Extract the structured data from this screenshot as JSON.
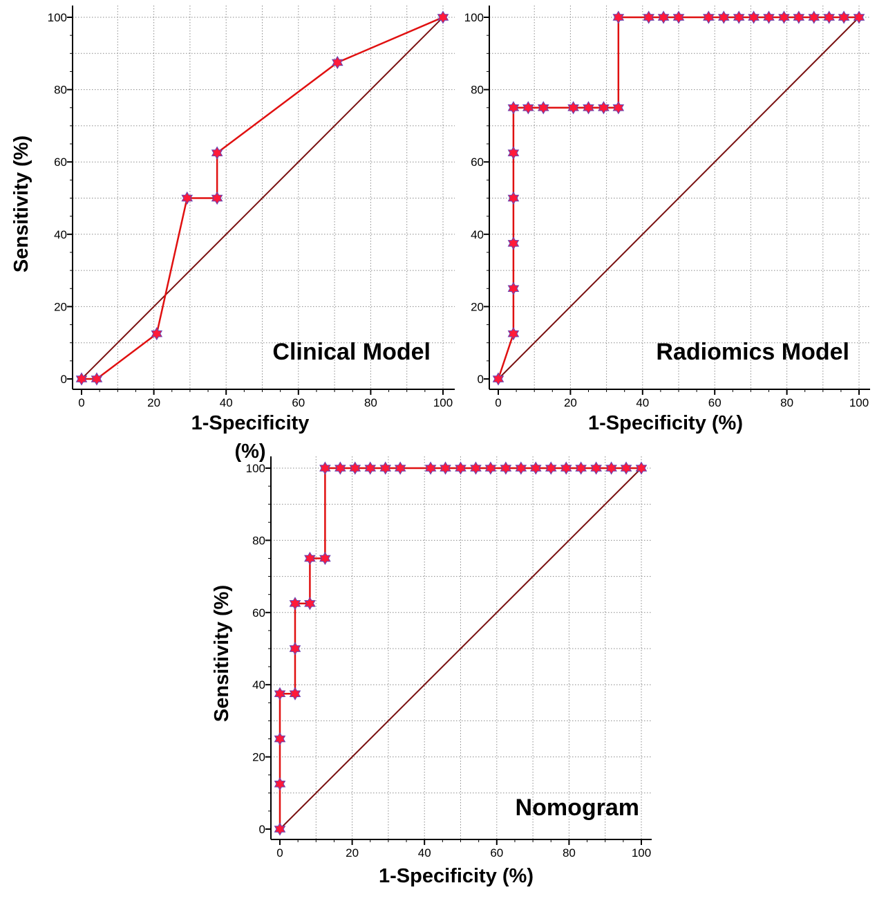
{
  "colors": {
    "roc_line": "#e01010",
    "marker_fill": "#ff1a3a",
    "marker_stroke": "#6a40b0",
    "diagonal": "#7a1010",
    "grid": "#8a8a8a",
    "axis": "#000000"
  },
  "chart_data": [
    {
      "type": "line",
      "title": "Clinical Model",
      "xlabel": "1-Specificity",
      "xlabel_unit": "(%)",
      "ylabel": "Sensitivity (%)",
      "xlim": [
        0,
        100
      ],
      "ylim": [
        0,
        100
      ],
      "xticks": [
        "0",
        "20",
        "40",
        "60",
        "80",
        "100"
      ],
      "yticks": [
        "0",
        "20",
        "40",
        "60",
        "80",
        "100"
      ],
      "grid": true,
      "series": [
        {
          "name": "ROC",
          "marker": "star",
          "x": [
            0,
            4.2,
            20.8,
            29.2,
            37.5,
            37.5,
            70.8,
            100
          ],
          "y": [
            0,
            0,
            12.5,
            50,
            50,
            62.5,
            87.5,
            100
          ]
        },
        {
          "name": "Reference",
          "x": [
            0,
            100
          ],
          "y": [
            0,
            100
          ]
        }
      ]
    },
    {
      "type": "line",
      "title": "Radiomics Model",
      "xlabel": "1-Specificity (%)",
      "ylabel": "",
      "xlim": [
        0,
        100
      ],
      "ylim": [
        0,
        100
      ],
      "xticks": [
        "0",
        "20",
        "40",
        "60",
        "80",
        "100"
      ],
      "yticks": [
        "0",
        "20",
        "40",
        "60",
        "80",
        "100"
      ],
      "grid": true,
      "series": [
        {
          "name": "ROC",
          "marker": "star",
          "x": [
            0,
            4.2,
            4.2,
            4.2,
            4.2,
            4.2,
            4.2,
            8.3,
            12.5,
            20.8,
            25,
            29.2,
            33.3,
            33.3,
            41.7,
            45.8,
            50,
            58.3,
            62.5,
            66.7,
            70.8,
            75,
            79.2,
            83.3,
            87.5,
            91.7,
            95.8,
            100
          ],
          "y": [
            0,
            12.5,
            25,
            37.5,
            50,
            62.5,
            75,
            75,
            75,
            75,
            75,
            75,
            75,
            100,
            100,
            100,
            100,
            100,
            100,
            100,
            100,
            100,
            100,
            100,
            100,
            100,
            100,
            100
          ]
        },
        {
          "name": "Reference",
          "x": [
            0,
            100
          ],
          "y": [
            0,
            100
          ]
        }
      ]
    },
    {
      "type": "line",
      "title": "Nomogram",
      "xlabel": "1-Specificity (%)",
      "ylabel": "Sensitivity (%)",
      "xlim": [
        0,
        100
      ],
      "ylim": [
        0,
        100
      ],
      "xticks": [
        "0",
        "20",
        "40",
        "60",
        "80",
        "100"
      ],
      "yticks": [
        "0",
        "20",
        "40",
        "60",
        "80",
        "100"
      ],
      "grid": true,
      "series": [
        {
          "name": "ROC",
          "marker": "star",
          "x": [
            0,
            0,
            0,
            0,
            4.2,
            4.2,
            4.2,
            8.3,
            8.3,
            12.5,
            12.5,
            16.7,
            20.8,
            25,
            29.2,
            33.3,
            41.7,
            45.8,
            50,
            54.2,
            58.3,
            62.5,
            66.7,
            70.8,
            75,
            79.2,
            83.3,
            87.5,
            91.7,
            95.8,
            100
          ],
          "y": [
            0,
            12.5,
            25,
            37.5,
            37.5,
            50,
            62.5,
            62.5,
            75,
            75,
            100,
            100,
            100,
            100,
            100,
            100,
            100,
            100,
            100,
            100,
            100,
            100,
            100,
            100,
            100,
            100,
            100,
            100,
            100,
            100,
            100
          ]
        },
        {
          "name": "Reference",
          "x": [
            0,
            100
          ],
          "y": [
            0,
            100
          ]
        }
      ]
    }
  ]
}
